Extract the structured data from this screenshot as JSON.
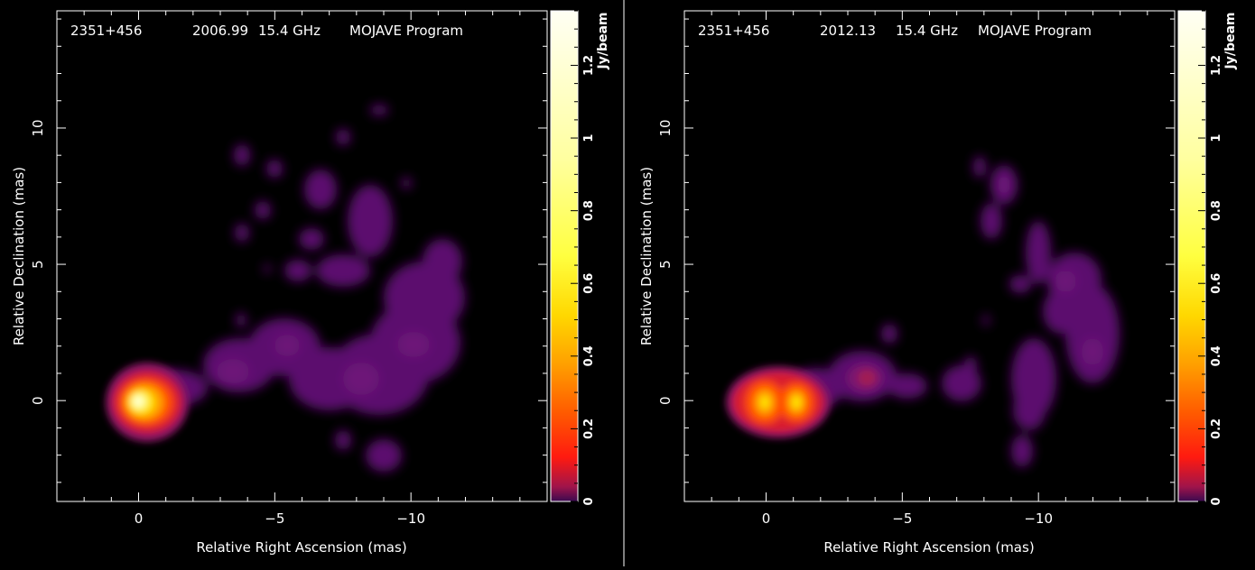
{
  "colors": {
    "background": "#000000",
    "axes": "#ffffff",
    "colormap": [
      "#000000",
      "#5b0f6e",
      "#c81c3c",
      "#ff2a00",
      "#ff8a00",
      "#ffd400",
      "#ffff4d",
      "#ffffe8"
    ]
  },
  "chart_data": [
    {
      "type": "heatmap",
      "header": {
        "source": "2351+456",
        "epoch": "2006.99",
        "frequency": "15.4 GHz",
        "program": "MOJAVE Program"
      },
      "xlabel": "Relative Right Ascension (mas)",
      "ylabel": "Relative Declination (mas)",
      "xlim": [
        3,
        -15
      ],
      "ylim": [
        -3.7,
        14.3
      ],
      "x_ticks": [
        0,
        -5,
        -10
      ],
      "y_ticks": [
        0,
        5,
        10
      ],
      "colorbar": {
        "label": "Jy/beam",
        "min": 0,
        "max": 1.35,
        "ticks": [
          0,
          0.2,
          0.4,
          0.6,
          0.8,
          1,
          1.2
        ]
      },
      "components": [
        {
          "ra": -0.3,
          "dec": 0.0,
          "flux": 1.3
        },
        {
          "ra": -0.8,
          "dec": 0.0,
          "flux": 0.9
        },
        {
          "ra": -3.5,
          "dec": 1.0,
          "flux": 0.06
        },
        {
          "ra": -5.3,
          "dec": 2.0,
          "flux": 0.05
        },
        {
          "ra": -8.0,
          "dec": 0.8,
          "flux": 0.05
        },
        {
          "ra": -10.0,
          "dec": 2.0,
          "flux": 0.06
        },
        {
          "ra": -10.5,
          "dec": 3.5,
          "flux": 0.05
        },
        {
          "ra": -9.0,
          "dec": 6.5,
          "flux": 0.04
        }
      ]
    },
    {
      "type": "heatmap",
      "header": {
        "source": "2351+456",
        "epoch": "2012.13",
        "frequency": "15.4 GHz",
        "program": "MOJAVE Program"
      },
      "xlabel": "Relative Right Ascension (mas)",
      "ylabel": "Relative Declination (mas)",
      "xlim": [
        3,
        -15
      ],
      "ylim": [
        -3.7,
        14.3
      ],
      "x_ticks": [
        0,
        -5,
        -10
      ],
      "y_ticks": [
        0,
        5,
        10
      ],
      "colorbar": {
        "label": "Jy/beam",
        "min": 0,
        "max": 1.35,
        "ticks": [
          0,
          0.2,
          0.4,
          0.6,
          0.8,
          1,
          1.2
        ]
      },
      "components": [
        {
          "ra": 0.0,
          "dec": 0.0,
          "flux": 0.45
        },
        {
          "ra": -1.1,
          "dec": 0.0,
          "flux": 0.4
        },
        {
          "ra": -3.7,
          "dec": 0.9,
          "flux": 0.12
        },
        {
          "ra": -10.9,
          "dec": 4.3,
          "flux": 0.05
        },
        {
          "ra": -12.1,
          "dec": 2.0,
          "flux": 0.05
        },
        {
          "ra": -10.0,
          "dec": 0.5,
          "flux": 0.04
        },
        {
          "ra": -8.9,
          "dec": 8.0,
          "flux": 0.04
        }
      ]
    }
  ]
}
